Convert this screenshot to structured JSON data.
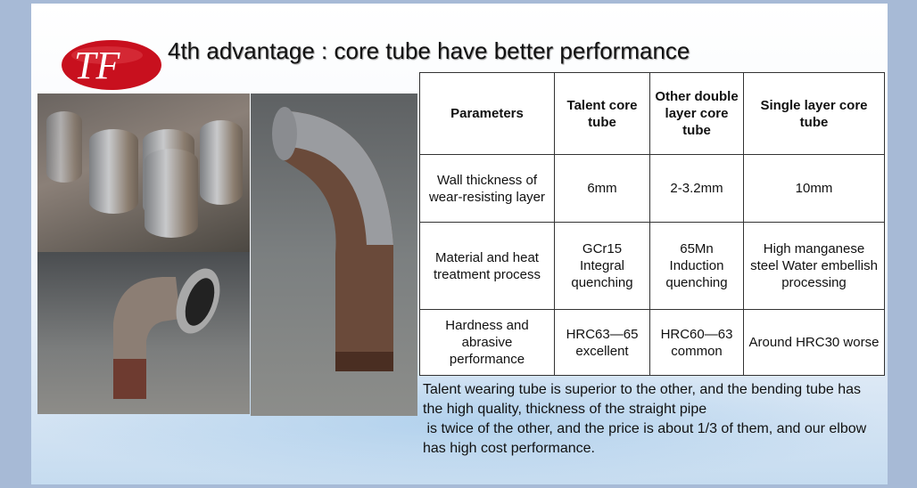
{
  "slide": {
    "title": "4th advantage : core tube have better performance",
    "logo_text": "TF",
    "colors": {
      "logo_red": "#c8101e",
      "background_frame": "#a7bad6"
    },
    "table": {
      "headers": [
        "Parameters",
        "Talent core tube",
        "Other double layer core tube",
        "Single layer core tube"
      ],
      "rows": [
        [
          "Wall thickness of wear-resisting layer",
          "6mm",
          "2-3.2mm",
          "10mm"
        ],
        [
          "Material and heat treatment process",
          "GCr15 Integral quenching",
          "65Mn Induction quenching",
          "High manganese steel Water embellish processing"
        ],
        [
          "Hardness and abrasive performance",
          "HRC63—65 excellent",
          "HRC60—63 common",
          "Around HRC30 worse"
        ]
      ]
    },
    "paragraph": "Talent wearing tube is superior to the other, and the bending tube has the high quality, thickness of the straight pipe\n is twice of the other, and the price is about 1/3 of them, and our elbow has high cost performance."
  }
}
